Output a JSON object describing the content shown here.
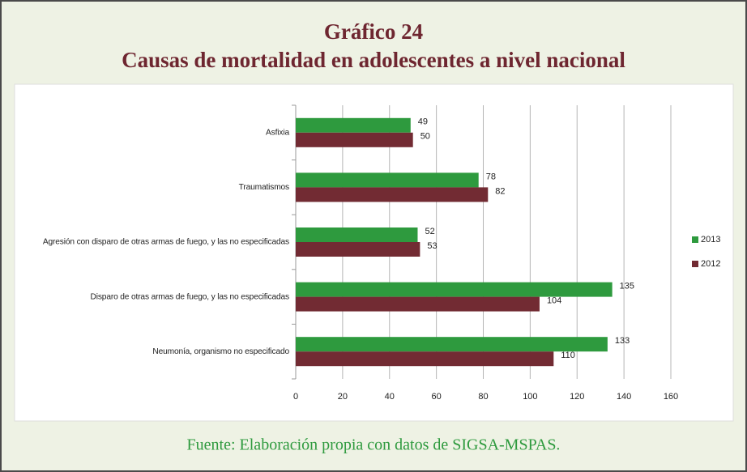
{
  "chart_data": {
    "type": "bar",
    "orientation": "horizontal",
    "title": "Gráfico 24",
    "subtitle": "Causas de mortalidad en adolescentes a nivel nacional",
    "source": "Fuente: Elaboración propia con datos de SIGSA-MSPAS.",
    "categories": [
      "Asfixia",
      "Traumatismos",
      "Agresión con disparo de otras armas de fuego, y las no especificadas",
      "Disparo de otras armas de fuego, y las no especificadas",
      "Neumonía, organismo no especificado"
    ],
    "series": [
      {
        "name": "2013",
        "color": "#2e9a3e",
        "values": [
          49,
          78,
          52,
          135,
          133
        ]
      },
      {
        "name": "2012",
        "color": "#722b33",
        "values": [
          50,
          82,
          53,
          104,
          110
        ]
      }
    ],
    "xlim": [
      0,
      160
    ],
    "xticks": [
      0,
      20,
      40,
      60,
      80,
      100,
      120,
      140,
      160
    ],
    "grid": true,
    "legend": "right"
  }
}
